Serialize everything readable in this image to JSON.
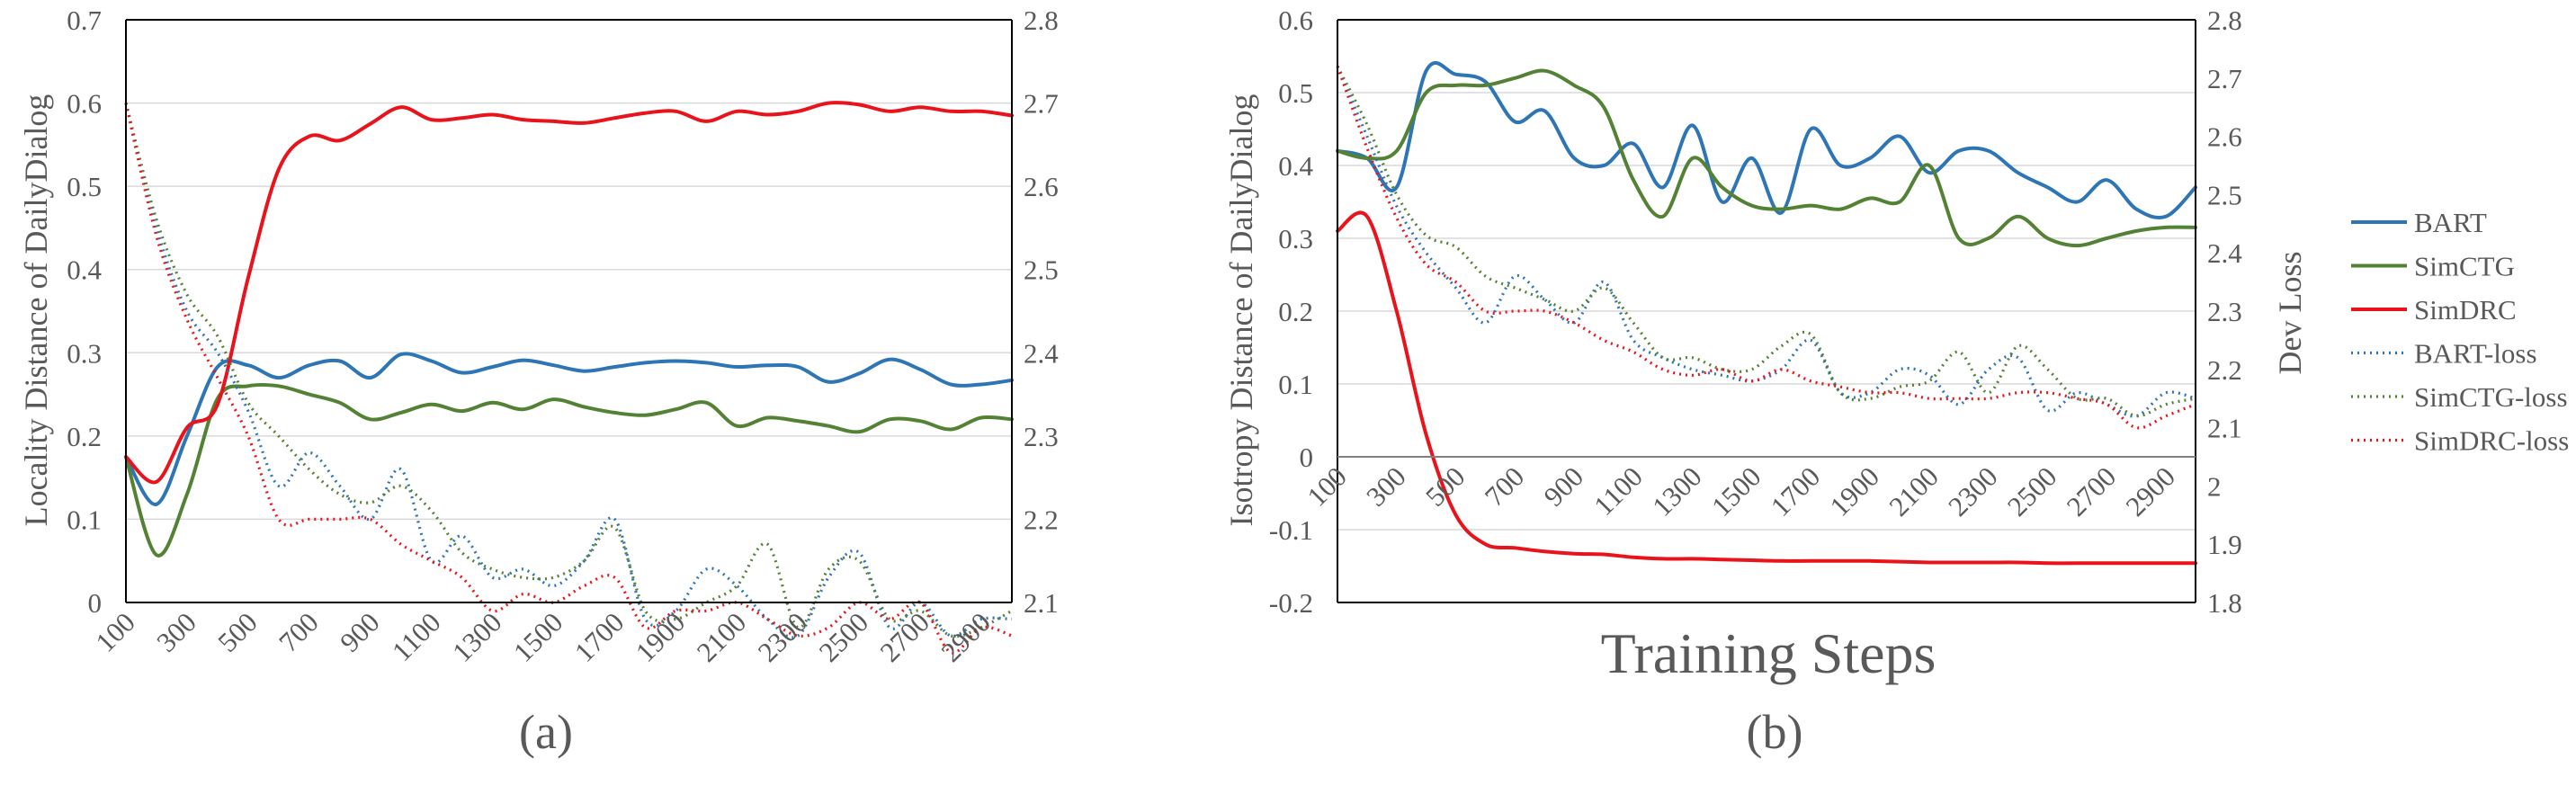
{
  "colors": {
    "BART": "#2e75b6",
    "SimCTG": "#548235",
    "SimDRC": "#e8131b",
    "grid": "#d9d9d9",
    "axis": "#000000",
    "text": "#595959"
  },
  "x_axis": {
    "title": "Training Steps",
    "tick_labels": [
      "100",
      "300",
      "500",
      "700",
      "900",
      "1100",
      "1300",
      "1500",
      "1700",
      "1900",
      "2100",
      "2300",
      "2500",
      "2700",
      "2900"
    ]
  },
  "legend": {
    "position": "right",
    "items": [
      {
        "label": "BART",
        "series": "BART",
        "dash": "solid"
      },
      {
        "label": "SimCTG",
        "series": "SimCTG",
        "dash": "solid"
      },
      {
        "label": "SimDRC",
        "series": "SimDRC",
        "dash": "solid"
      },
      {
        "label": "BART-loss",
        "series": "BART",
        "dash": "dotted"
      },
      {
        "label": "SimCTG-loss",
        "series": "SimCTG",
        "dash": "dotted"
      },
      {
        "label": "SimDRC-loss",
        "series": "SimDRC",
        "dash": "dotted"
      }
    ]
  },
  "chart_data": [
    {
      "type": "line",
      "panel_label": "(a)",
      "xlabel": "",
      "ylabel": "Locality Distance of DailyDialog",
      "y2label": "",
      "xlim": [
        100,
        3000
      ],
      "ylim": [
        0,
        0.7
      ],
      "y2lim": [
        2.1,
        2.8
      ],
      "yticks": [
        "0",
        "0.1",
        "0.2",
        "0.3",
        "0.4",
        "0.5",
        "0.6",
        "0.7"
      ],
      "y2ticks": [
        "2.1",
        "2.2",
        "2.3",
        "2.4",
        "2.5",
        "2.6",
        "2.7",
        "2.8"
      ],
      "grid": true,
      "x": [
        100,
        200,
        300,
        400,
        500,
        600,
        700,
        800,
        900,
        1000,
        1100,
        1200,
        1300,
        1400,
        1500,
        1600,
        1700,
        1800,
        1900,
        2000,
        2100,
        2200,
        2300,
        2400,
        2500,
        2600,
        2700,
        2800,
        2900,
        3000
      ],
      "series": [
        {
          "name": "BART",
          "axis": "left",
          "dash": "solid",
          "values": [
            0.175,
            0.118,
            0.2,
            0.283,
            0.285,
            0.27,
            0.285,
            0.29,
            0.27,
            0.298,
            0.29,
            0.276,
            0.283,
            0.291,
            0.285,
            0.278,
            0.283,
            0.288,
            0.29,
            0.288,
            0.283,
            0.285,
            0.283,
            0.265,
            0.275,
            0.292,
            0.28,
            0.262,
            0.262,
            0.267
          ]
        },
        {
          "name": "SimCTG",
          "axis": "left",
          "dash": "solid",
          "values": [
            0.175,
            0.057,
            0.13,
            0.245,
            0.26,
            0.26,
            0.25,
            0.24,
            0.22,
            0.228,
            0.238,
            0.23,
            0.24,
            0.232,
            0.244,
            0.235,
            0.228,
            0.225,
            0.232,
            0.24,
            0.212,
            0.222,
            0.218,
            0.212,
            0.205,
            0.22,
            0.218,
            0.208,
            0.222,
            0.22
          ]
        },
        {
          "name": "SimDRC",
          "axis": "left",
          "dash": "solid",
          "values": [
            0.175,
            0.145,
            0.21,
            0.238,
            0.39,
            0.52,
            0.56,
            0.555,
            0.575,
            0.595,
            0.58,
            0.582,
            0.586,
            0.58,
            0.578,
            0.576,
            0.582,
            0.588,
            0.59,
            0.578,
            0.59,
            0.586,
            0.59,
            0.6,
            0.598,
            0.59,
            0.595,
            0.59,
            0.59,
            0.585
          ]
        },
        {
          "name": "BART-loss",
          "axis": "right",
          "dash": "dotted",
          "values": [
            2.7,
            2.55,
            2.45,
            2.4,
            2.33,
            2.24,
            2.28,
            2.24,
            2.2,
            2.26,
            2.15,
            2.18,
            2.13,
            2.14,
            2.12,
            2.15,
            2.2,
            2.08,
            2.09,
            2.14,
            2.12,
            2.08,
            2.06,
            2.13,
            2.16,
            2.07,
            2.1,
            2.06,
            2.08,
            2.08
          ]
        },
        {
          "name": "SimCTG-loss",
          "axis": "right",
          "dash": "dotted",
          "values": [
            2.7,
            2.56,
            2.47,
            2.42,
            2.34,
            2.3,
            2.26,
            2.23,
            2.22,
            2.24,
            2.21,
            2.16,
            2.14,
            2.13,
            2.13,
            2.15,
            2.19,
            2.09,
            2.08,
            2.1,
            2.12,
            2.17,
            2.07,
            2.14,
            2.15,
            2.08,
            2.09,
            2.06,
            2.07,
            2.09
          ]
        },
        {
          "name": "SimDRC-loss",
          "axis": "right",
          "dash": "dotted",
          "values": [
            2.7,
            2.54,
            2.44,
            2.37,
            2.3,
            2.2,
            2.2,
            2.2,
            2.2,
            2.17,
            2.15,
            2.13,
            2.09,
            2.11,
            2.1,
            2.12,
            2.13,
            2.07,
            2.09,
            2.09,
            2.1,
            2.08,
            2.06,
            2.07,
            2.1,
            2.08,
            2.1,
            2.04,
            2.07,
            2.06
          ]
        }
      ]
    },
    {
      "type": "line",
      "panel_label": "(b)",
      "xlabel": "Training Steps",
      "ylabel": "Isotropy Distance of DailyDialog",
      "y2label": "Dev Loss",
      "xlim": [
        100,
        3000
      ],
      "ylim": [
        -0.2,
        0.6
      ],
      "y2lim": [
        1.8,
        2.8
      ],
      "yticks": [
        "-0.2",
        "-0.1",
        "0",
        "0.1",
        "0.2",
        "0.3",
        "0.4",
        "0.5",
        "0.6"
      ],
      "y2ticks": [
        "1.8",
        "1.9",
        "2",
        "2.1",
        "2.2",
        "2.3",
        "2.4",
        "2.5",
        "2.6",
        "2.7",
        "2.8"
      ],
      "grid": true,
      "x": [
        100,
        200,
        300,
        400,
        500,
        600,
        700,
        800,
        900,
        1000,
        1100,
        1200,
        1300,
        1400,
        1500,
        1600,
        1700,
        1800,
        1900,
        2000,
        2100,
        2200,
        2300,
        2400,
        2500,
        2600,
        2700,
        2800,
        2900,
        3000
      ],
      "series": [
        {
          "name": "BART",
          "axis": "left",
          "dash": "solid",
          "values": [
            0.42,
            0.41,
            0.37,
            0.53,
            0.525,
            0.515,
            0.46,
            0.475,
            0.41,
            0.4,
            0.43,
            0.37,
            0.455,
            0.35,
            0.41,
            0.335,
            0.45,
            0.4,
            0.41,
            0.44,
            0.39,
            0.42,
            0.42,
            0.39,
            0.37,
            0.35,
            0.38,
            0.34,
            0.33,
            0.37
          ]
        },
        {
          "name": "SimCTG",
          "axis": "left",
          "dash": "solid",
          "values": [
            0.42,
            0.41,
            0.42,
            0.5,
            0.51,
            0.51,
            0.52,
            0.53,
            0.51,
            0.48,
            0.38,
            0.33,
            0.41,
            0.37,
            0.345,
            0.34,
            0.345,
            0.34,
            0.355,
            0.35,
            0.4,
            0.3,
            0.3,
            0.33,
            0.3,
            0.29,
            0.3,
            0.31,
            0.315,
            0.315
          ]
        },
        {
          "name": "SimDRC",
          "axis": "left",
          "dash": "solid",
          "values": [
            0.31,
            0.33,
            0.2,
            0.03,
            -0.08,
            -0.12,
            -0.125,
            -0.13,
            -0.133,
            -0.134,
            -0.138,
            -0.14,
            -0.14,
            -0.141,
            -0.142,
            -0.143,
            -0.143,
            -0.143,
            -0.143,
            -0.144,
            -0.145,
            -0.145,
            -0.145,
            -0.145,
            -0.146,
            -0.146,
            -0.146,
            -0.146,
            -0.146,
            -0.146
          ]
        },
        {
          "name": "BART-loss",
          "axis": "right",
          "dash": "dotted",
          "values": [
            2.72,
            2.6,
            2.48,
            2.4,
            2.34,
            2.28,
            2.36,
            2.32,
            2.28,
            2.35,
            2.25,
            2.22,
            2.2,
            2.19,
            2.18,
            2.2,
            2.25,
            2.16,
            2.16,
            2.2,
            2.19,
            2.14,
            2.2,
            2.22,
            2.13,
            2.16,
            2.14,
            2.12,
            2.16,
            2.15
          ]
        },
        {
          "name": "SimCTG-loss",
          "axis": "right",
          "dash": "dotted",
          "values": [
            2.72,
            2.62,
            2.5,
            2.43,
            2.41,
            2.36,
            2.34,
            2.32,
            2.3,
            2.34,
            2.28,
            2.22,
            2.22,
            2.2,
            2.2,
            2.24,
            2.26,
            2.16,
            2.15,
            2.17,
            2.18,
            2.23,
            2.16,
            2.24,
            2.2,
            2.15,
            2.15,
            2.12,
            2.14,
            2.15
          ]
        },
        {
          "name": "SimDRC-loss",
          "axis": "right",
          "dash": "dotted",
          "values": [
            2.72,
            2.58,
            2.46,
            2.38,
            2.35,
            2.3,
            2.3,
            2.3,
            2.28,
            2.25,
            2.23,
            2.2,
            2.19,
            2.2,
            2.18,
            2.2,
            2.18,
            2.17,
            2.16,
            2.16,
            2.15,
            2.15,
            2.15,
            2.16,
            2.16,
            2.15,
            2.14,
            2.1,
            2.12,
            2.14
          ]
        }
      ]
    }
  ]
}
